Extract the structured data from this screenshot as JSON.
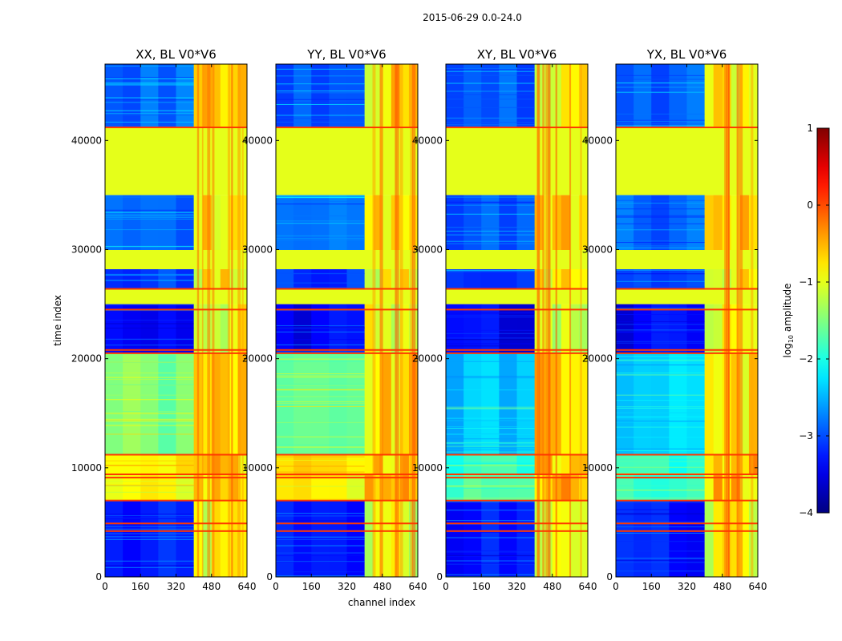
{
  "chart_data": {
    "type": "heatmap",
    "suptitle": "2015-06-29 0.0-24.0",
    "xlabel": "channel index",
    "ylabel": "time index",
    "colorbar_label": "log10 amplitude",
    "colorbar_label_parts": {
      "base": "log",
      "subscript": "10",
      "rest": " amplitude"
    },
    "colorbar_range": [
      -4,
      1
    ],
    "colorbar_ticks": [
      "1",
      "0",
      "−1",
      "−2",
      "−3",
      "−4"
    ],
    "colorbar_tick_values": [
      1,
      0,
      -1,
      -2,
      -3,
      -4
    ],
    "xlim": [
      0,
      640
    ],
    "ylim": [
      0,
      47000
    ],
    "x_ticks": [
      "0",
      "160",
      "320",
      "480",
      "640"
    ],
    "x_tick_values": [
      0,
      160,
      320,
      480,
      640
    ],
    "y_ticks": [
      "0",
      "10000",
      "20000",
      "30000",
      "40000"
    ],
    "y_tick_values": [
      0,
      10000,
      20000,
      30000,
      40000
    ],
    "panels": [
      {
        "title": "XX, BL V0*V6",
        "pol": "XX"
      },
      {
        "title": "YY, BL V0*V6",
        "pol": "YY"
      },
      {
        "title": "XY, BL V0*V6",
        "pol": "XY"
      },
      {
        "title": "YX, BL V0*V6",
        "pol": "YX"
      }
    ],
    "bands": [
      {
        "t0": 0,
        "t1": 7000,
        "background": -3.3,
        "active": -1.0
      },
      {
        "t0": 7000,
        "t1": 9400,
        "background": -0.9,
        "active": -0.6,
        "cross_background": -1.8
      },
      {
        "t0": 9400,
        "t1": 11200,
        "background": -0.8,
        "active": -0.6,
        "cross_background": -1.9
      },
      {
        "t0": 11200,
        "t1": 20500,
        "background": -1.5,
        "active": -0.7,
        "cross_background": -2.4
      },
      {
        "t0": 20500,
        "t1": 25000,
        "background": -3.4,
        "active": -1.0
      },
      {
        "t0": 25000,
        "t1": 26500,
        "background": -1.0,
        "flat": true
      },
      {
        "t0": 26500,
        "t1": 28200,
        "background": -3.1,
        "active": -0.9
      },
      {
        "t0": 28200,
        "t1": 30000,
        "background": -1.0,
        "flat": true
      },
      {
        "t0": 30000,
        "t1": 35000,
        "background": -2.9,
        "active": -0.7
      },
      {
        "t0": 35000,
        "t1": 41200,
        "background": -1.0,
        "flat": true
      },
      {
        "t0": 41200,
        "t1": 47000,
        "background": -2.9,
        "active": -0.8
      }
    ],
    "flag_lines": [
      4200,
      4900,
      7000,
      9100,
      9400,
      11200,
      20500,
      20800,
      24500,
      26400,
      41200
    ],
    "active_channel_start": 400
  }
}
